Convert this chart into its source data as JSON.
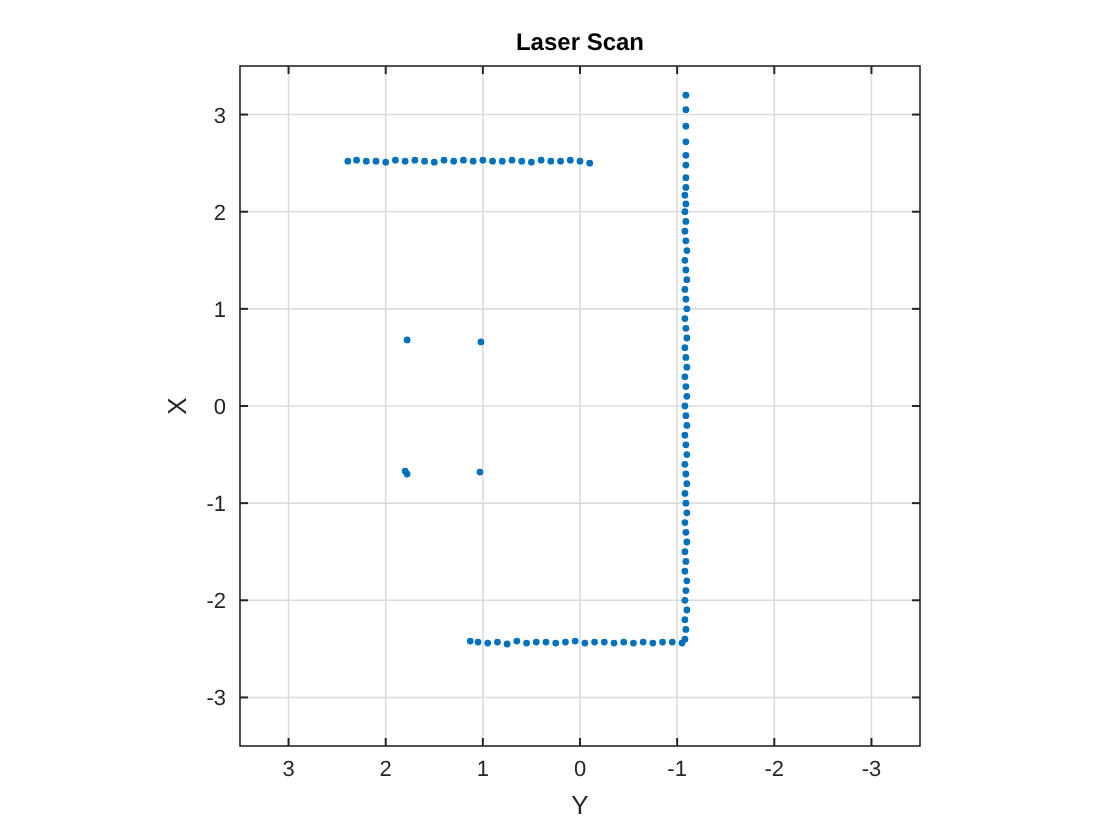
{
  "chart_data": {
    "type": "scatter",
    "title": "Laser Scan",
    "xlabel": "Y",
    "ylabel": "X",
    "xlim": [
      3.5,
      -3.5
    ],
    "ylim": [
      -3.5,
      3.5
    ],
    "xticks": [
      3,
      2,
      1,
      0,
      -1,
      -2,
      -3
    ],
    "yticks": [
      -3,
      -2,
      -1,
      0,
      1,
      2,
      3
    ],
    "grid": true,
    "marker": "circle",
    "color": "#0072bd",
    "x": [
      2.39,
      2.3,
      2.2,
      2.1,
      2.0,
      1.9,
      1.8,
      1.7,
      1.6,
      1.5,
      1.4,
      1.3,
      1.2,
      1.1,
      1.0,
      0.9,
      0.8,
      0.7,
      0.6,
      0.5,
      0.4,
      0.3,
      0.2,
      0.1,
      0.0,
      -0.1,
      1.13,
      1.05,
      0.95,
      0.85,
      0.75,
      0.65,
      0.55,
      0.45,
      0.35,
      0.25,
      0.15,
      0.05,
      -0.05,
      -0.15,
      -0.25,
      -0.35,
      -0.45,
      -0.55,
      -0.65,
      -0.75,
      -0.85,
      -0.95,
      -1.05,
      -1.08,
      -1.09,
      -1.08,
      -1.1,
      -1.08,
      -1.09,
      -1.1,
      -1.08,
      -1.09,
      -1.08,
      -1.1,
      -1.09,
      -1.08,
      -1.1,
      -1.09,
      -1.08,
      -1.1,
      -1.09,
      -1.08,
      -1.1,
      -1.09,
      -1.08,
      -1.1,
      -1.09,
      -1.08,
      -1.1,
      -1.09,
      -1.08,
      -1.1,
      -1.09,
      -1.08,
      -1.1,
      -1.09,
      -1.08,
      -1.1,
      -1.09,
      -1.08,
      -1.1,
      -1.09,
      -1.08,
      -1.1,
      -1.09,
      -1.08,
      -1.09,
      -1.08,
      -1.09,
      -1.08,
      -1.09,
      -1.09,
      -1.09,
      -1.09,
      -1.09,
      -1.09,
      -1.09,
      -1.09,
      1.78,
      1.02,
      1.8,
      1.78,
      1.03
    ],
    "values": [
      2.52,
      2.53,
      2.52,
      2.52,
      2.51,
      2.53,
      2.52,
      2.53,
      2.52,
      2.51,
      2.53,
      2.52,
      2.53,
      2.52,
      2.53,
      2.52,
      2.52,
      2.53,
      2.52,
      2.51,
      2.53,
      2.52,
      2.52,
      2.53,
      2.52,
      2.5,
      -2.42,
      -2.43,
      -2.44,
      -2.43,
      -2.45,
      -2.42,
      -2.44,
      -2.43,
      -2.43,
      -2.44,
      -2.43,
      -2.42,
      -2.44,
      -2.43,
      -2.43,
      -2.44,
      -2.43,
      -2.44,
      -2.43,
      -2.44,
      -2.43,
      -2.43,
      -2.44,
      -2.4,
      -2.3,
      -2.2,
      -2.1,
      -2.0,
      -1.9,
      -1.8,
      -1.7,
      -1.6,
      -1.5,
      -1.4,
      -1.3,
      -1.2,
      -1.1,
      -1.0,
      -0.9,
      -0.8,
      -0.7,
      -0.6,
      -0.5,
      -0.4,
      -0.3,
      -0.2,
      -0.1,
      0.0,
      0.1,
      0.2,
      0.3,
      0.4,
      0.5,
      0.6,
      0.7,
      0.8,
      0.9,
      1.0,
      1.1,
      1.2,
      1.3,
      1.4,
      1.5,
      1.6,
      1.7,
      1.8,
      1.9,
      2.0,
      2.08,
      2.17,
      2.25,
      2.35,
      2.48,
      2.58,
      2.72,
      2.88,
      3.05,
      3.2,
      0.68,
      0.66,
      -0.67,
      -0.7,
      -0.68
    ]
  }
}
